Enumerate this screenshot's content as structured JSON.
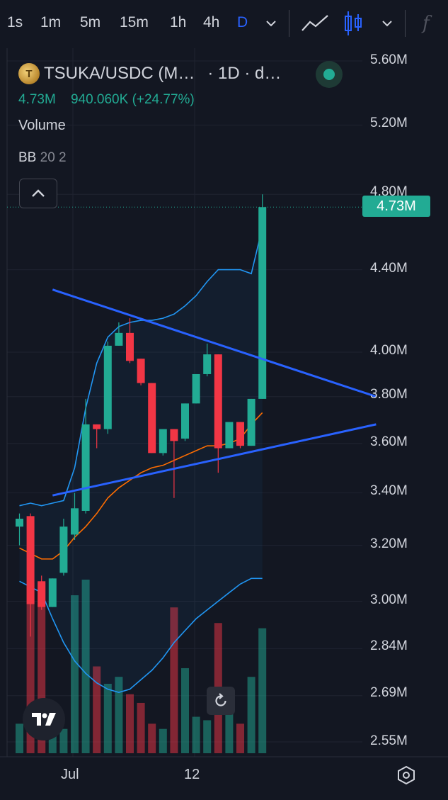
{
  "toolbar": {
    "timeframes": [
      "1s",
      "1m",
      "5m",
      "15m",
      "1h",
      "4h",
      "D"
    ],
    "active_timeframe": "D",
    "icons": [
      "chevron-down-icon",
      "line-chart-icon",
      "candles-icon",
      "chevron-down-icon",
      "indicator-fx-icon"
    ],
    "fx_label": "f"
  },
  "legend": {
    "symbol": "TSUKA/USDC (M…",
    "interval": "· 1D · d…",
    "last": "4.73M",
    "change": "940.060K (+24.77%)",
    "volume_label": "Volume",
    "bb_name": "BB",
    "bb_params": "20 2",
    "status_color": "#22ab94"
  },
  "price_axis": {
    "labels": [
      "5.60M",
      "5.20M",
      "4.80M",
      "4.40M",
      "4.00M",
      "3.80M",
      "3.60M",
      "3.40M",
      "3.20M",
      "3.00M",
      "2.84M",
      "2.69M",
      "2.55M"
    ],
    "last_price_label": "4.73M"
  },
  "time_axis": {
    "labels": [
      "Jul",
      "12"
    ]
  },
  "colors": {
    "up": "#22ab94",
    "down": "#f23645",
    "bb_band": "#2196f3",
    "bb_basis": "#ff6d00",
    "trendline": "#2962ff",
    "background": "#131722"
  },
  "chart_data": {
    "type": "candlestick",
    "symbol": "TSUKA/USDC",
    "interval": "1D",
    "y_scale": "log",
    "ylim": [
      2.5,
      5.65
    ],
    "ylabel_unit": "M",
    "candles": [
      {
        "o": 3.27,
        "h": 3.32,
        "l": 3.2,
        "c": 3.3
      },
      {
        "o": 3.31,
        "h": 3.32,
        "l": 2.88,
        "c": 2.99
      },
      {
        "o": 3.07,
        "h": 3.09,
        "l": 2.97,
        "c": 2.98
      },
      {
        "o": 2.98,
        "h": 3.08,
        "l": 2.98,
        "c": 3.08
      },
      {
        "o": 3.1,
        "h": 3.3,
        "l": 3.09,
        "c": 3.27
      },
      {
        "o": 3.24,
        "h": 3.4,
        "l": 3.22,
        "c": 3.34
      },
      {
        "o": 3.33,
        "h": 3.79,
        "l": 3.32,
        "c": 3.68
      },
      {
        "o": 3.68,
        "h": 3.68,
        "l": 3.58,
        "c": 3.66
      },
      {
        "o": 3.66,
        "h": 4.05,
        "l": 3.64,
        "c": 4.03
      },
      {
        "o": 4.03,
        "h": 4.14,
        "l": 4.03,
        "c": 4.09
      },
      {
        "o": 4.09,
        "h": 4.16,
        "l": 3.95,
        "c": 3.96
      },
      {
        "o": 3.97,
        "h": 3.97,
        "l": 3.85,
        "c": 3.86
      },
      {
        "o": 3.86,
        "h": 3.86,
        "l": 3.56,
        "c": 3.56
      },
      {
        "o": 3.56,
        "h": 3.66,
        "l": 3.55,
        "c": 3.66
      },
      {
        "o": 3.66,
        "h": 3.66,
        "l": 3.38,
        "c": 3.61
      },
      {
        "o": 3.62,
        "h": 3.77,
        "l": 3.61,
        "c": 3.77
      },
      {
        "o": 3.77,
        "h": 3.9,
        "l": 3.77,
        "c": 3.9
      },
      {
        "o": 3.9,
        "h": 4.04,
        "l": 3.89,
        "c": 3.99
      },
      {
        "o": 3.99,
        "h": 3.99,
        "l": 3.48,
        "c": 3.58
      },
      {
        "o": 3.58,
        "h": 3.69,
        "l": 3.58,
        "c": 3.69
      },
      {
        "o": 3.69,
        "h": 3.69,
        "l": 3.58,
        "c": 3.59
      },
      {
        "o": 3.59,
        "h": 3.79,
        "l": 3.59,
        "c": 3.79
      },
      {
        "o": 3.79,
        "h": 4.8,
        "l": 3.79,
        "c": 4.73
      }
    ],
    "volume": [
      0.17,
      0.98,
      0.98,
      0.21,
      0.14,
      0.91,
      1.0,
      0.5,
      0.4,
      0.44,
      0.34,
      0.29,
      0.17,
      0.14,
      0.84,
      0.49,
      0.21,
      0.19,
      0.75,
      0.32,
      0.17,
      0.44,
      0.72
    ],
    "bb_upper": [
      3.35,
      3.36,
      3.35,
      3.36,
      3.37,
      3.5,
      3.75,
      3.95,
      4.07,
      4.12,
      4.14,
      4.15,
      4.15,
      4.16,
      4.18,
      4.22,
      4.27,
      4.34,
      4.4,
      4.4,
      4.4,
      4.38,
      4.62
    ],
    "bb_basis": [
      3.19,
      3.17,
      3.15,
      3.15,
      3.18,
      3.23,
      3.27,
      3.32,
      3.38,
      3.42,
      3.45,
      3.48,
      3.5,
      3.51,
      3.53,
      3.55,
      3.57,
      3.59,
      3.59,
      3.6,
      3.62,
      3.68,
      3.73
    ],
    "bb_lower": [
      3.07,
      3.05,
      3.03,
      2.94,
      2.86,
      2.8,
      2.76,
      2.73,
      2.71,
      2.7,
      2.71,
      2.74,
      2.77,
      2.81,
      2.86,
      2.9,
      2.94,
      2.97,
      3.0,
      3.03,
      3.06,
      3.08,
      3.08
    ],
    "trendlines": [
      {
        "from": {
          "bar": 3,
          "price": 4.3
        },
        "to": {
          "bar": 32.3,
          "price": 3.8
        }
      },
      {
        "from": {
          "bar": 3,
          "price": 3.39
        },
        "to": {
          "bar": 32.3,
          "price": 3.68
        }
      }
    ]
  }
}
